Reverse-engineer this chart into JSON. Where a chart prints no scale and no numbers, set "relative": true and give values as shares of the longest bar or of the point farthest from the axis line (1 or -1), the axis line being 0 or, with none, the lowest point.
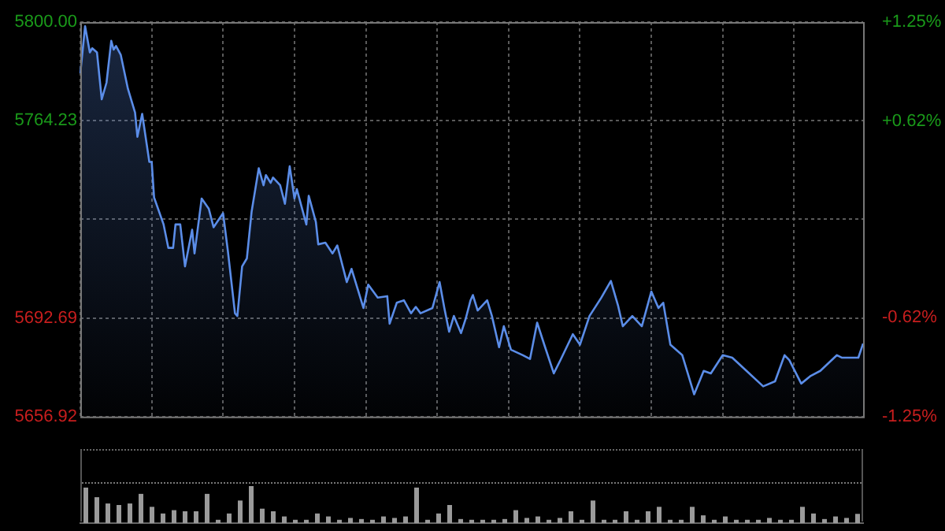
{
  "chart_data": [
    {
      "type": "area",
      "color": "#5b8de8",
      "grid": true,
      "tick_labels": "y",
      "ylim": [
        5656.92,
        5800
      ],
      "yticks": [
        {
          "value": 5656.92,
          "label": "5656.92"
        },
        {
          "value": 5692.69,
          "label": "5692.69"
        },
        {
          "value": 5728.46,
          "label": null
        },
        {
          "value": 5764.23,
          "label": "5764.23"
        },
        {
          "value": 5800,
          "label": "5800.00"
        }
      ],
      "y2lim": [
        -1.25,
        1.25
      ],
      "y2ticks": [
        {
          "value": -1.25,
          "label": "-1.25%"
        },
        {
          "value": -0.62,
          "label": "-0.62%"
        },
        {
          "value": 0,
          "label": null
        },
        {
          "value": 0.62,
          "label": "+0.62%"
        },
        {
          "value": 1.25,
          "label": "+1.25%"
        }
      ],
      "categories": [
        null,
        null,
        null,
        null,
        null,
        null,
        null,
        null,
        null,
        null,
        null,
        null,
        null,
        null,
        null,
        null,
        null,
        null,
        null,
        null,
        null,
        null,
        null,
        null,
        null,
        null,
        null,
        null,
        null,
        null,
        null,
        null,
        null,
        null,
        null,
        null,
        null,
        null,
        null,
        null,
        null,
        null,
        null,
        null,
        null,
        null,
        null,
        null,
        null,
        null,
        null,
        null,
        null,
        null,
        null,
        null,
        null,
        null,
        null,
        null,
        null,
        null,
        null,
        null,
        null,
        null,
        null,
        null,
        null,
        null,
        null,
        null,
        null,
        null,
        null,
        null,
        null,
        null,
        null,
        null,
        null,
        null,
        null,
        null,
        null,
        null,
        null,
        null,
        null,
        null,
        null,
        null,
        null,
        null,
        null,
        null,
        null,
        null,
        null,
        null,
        null,
        null,
        null,
        null,
        null,
        null,
        null,
        null,
        null,
        null,
        null,
        null,
        null,
        null,
        null,
        null,
        null,
        null,
        null,
        null,
        null,
        null,
        null,
        null,
        null,
        null,
        null,
        null,
        null,
        null,
        null,
        null,
        null,
        null,
        null,
        null,
        null,
        null,
        null,
        null,
        null,
        null,
        null,
        null,
        null,
        null,
        null,
        null,
        null,
        null,
        null,
        null,
        null,
        null,
        null,
        null,
        null,
        null,
        null,
        null,
        null,
        null,
        null,
        null,
        null,
        null,
        null,
        null,
        null,
        null,
        null,
        null,
        null,
        null,
        null,
        null,
        null,
        null,
        null,
        null,
        null,
        null,
        null,
        null,
        null,
        null,
        null,
        null,
        null,
        null,
        null,
        null,
        null,
        null,
        null,
        null,
        null,
        null,
        null,
        null,
        null,
        null,
        null,
        null,
        null,
        null,
        null,
        null,
        null,
        null,
        null,
        null,
        null,
        null,
        null,
        null,
        null,
        null,
        null,
        null,
        null,
        null,
        null,
        null,
        null,
        null,
        null,
        null,
        null,
        null,
        null,
        null,
        null,
        null,
        null,
        null,
        null,
        null,
        null,
        null,
        null,
        null,
        null,
        null,
        null,
        null,
        null,
        null,
        null,
        null,
        null,
        null,
        null,
        null,
        null,
        null,
        null,
        null,
        null,
        null,
        null,
        null,
        null,
        null,
        null,
        null,
        null,
        null,
        null,
        null,
        null,
        null,
        null,
        null,
        null,
        null,
        null,
        null,
        null,
        null,
        null,
        null,
        null,
        null,
        null,
        null,
        null,
        null,
        null,
        null,
        null,
        null,
        null,
        null,
        null,
        null,
        null,
        null,
        null,
        null,
        null,
        null,
        null,
        null,
        null,
        null,
        null,
        null,
        null,
        null,
        null,
        null,
        null,
        null,
        null,
        null,
        null,
        null,
        null,
        null,
        null,
        null,
        null,
        null,
        null,
        null,
        null,
        null,
        null,
        null
      ],
      "values": [
        5781.4,
        null,
        5798.5,
        null,
        5789.0,
        5790.5,
        null,
        5789.0,
        null,
        5772.0,
        null,
        5778.0,
        null,
        5793.2,
        5790.0,
        5791.3,
        null,
        5788.1,
        null,
        null,
        5775.8,
        null,
        null,
        5767.2,
        5758.4,
        null,
        5766.7,
        null,
        null,
        5749.3,
        5749.3,
        5736.4,
        null,
        null,
        null,
        5726.6,
        null,
        5718.1,
        null,
        5718.1,
        5726.6,
        null,
        5726.6,
        null,
        5711.4,
        null,
        null,
        5724.7,
        5716.1,
        null,
        null,
        5736.0,
        null,
        null,
        5732.3,
        null,
        5725.6,
        null,
        null,
        null,
        5730.7,
        null,
        5717.1,
        null,
        null,
        5694.4,
        5693.4,
        null,
        5711.4,
        null,
        5714.3,
        null,
        5731.3,
        null,
        null,
        5747.0,
        null,
        5740.8,
        5744.5,
        null,
        5741.7,
        5743.6,
        null,
        null,
        5740.8,
        null,
        5734.1,
        null,
        5747.7,
        null,
        5736.0,
        5739.4,
        null,
        null,
        null,
        5726.6,
        5737.0,
        null,
        null,
        5727.5,
        5719.4,
        null,
        null,
        5720.0,
        null,
        null,
        5716.1,
        null,
        5719.0,
        null,
        null,
        null,
        5705.7,
        null,
        5710.5,
        null,
        null,
        null,
        null,
        5696.3,
        null,
        5704.8,
        null,
        null,
        null,
        5700.1,
        null,
        null,
        null,
        5700.6,
        5690.6,
        null,
        null,
        5698.2,
        null,
        null,
        5699.1,
        null,
        null,
        5694.4,
        null,
        5696.7,
        null,
        5694.4,
        null,
        null,
        null,
        null,
        5696.3,
        null,
        null,
        5705.7,
        null,
        5696.3,
        null,
        5687.7,
        null,
        5693.4,
        null,
        null,
        5687.2,
        null,
        5692.5,
        null,
        5699.1,
        5701.0,
        null,
        5695.4,
        null,
        null,
        null,
        5699.1,
        null,
        5693.4,
        null,
        null,
        5682.1,
        null,
        5689.7,
        null,
        null,
        5681.2,
        null,
        null,
        null,
        null,
        5679.2,
        null,
        null,
        5677.8,
        null,
        null,
        5691.0,
        null,
        null,
        5683.0,
        null,
        null,
        null,
        5672.6,
        null,
        null,
        5677.8,
        null,
        null,
        null,
        null,
        5686.8,
        null,
        null,
        5683.0,
        null,
        null,
        null,
        5693.4,
        null,
        null,
        null,
        null,
        5700.1,
        null,
        null,
        null,
        5706.1,
        null,
        null,
        5697.2,
        null,
        5689.7,
        null,
        null,
        null,
        5693.4,
        null,
        null,
        null,
        5689.7,
        null,
        null,
        null,
        5702.3,
        null,
        null,
        5696.3,
        null,
        5698.2,
        null,
        null,
        5683.0,
        null,
        null,
        null,
        null,
        5679.2,
        null,
        null,
        null,
        null,
        5665.0,
        null,
        null,
        null,
        5673.5,
        null,
        null,
        5672.6,
        null,
        null,
        null,
        null,
        5679.2,
        null,
        null,
        null,
        5678.3,
        null,
        null,
        null,
        null,
        null,
        5673.5,
        null,
        null,
        null,
        null,
        null,
        null,
        5667.9,
        null,
        null,
        null,
        null,
        5669.7,
        null,
        null,
        null,
        5679.2,
        null,
        5677.4,
        null,
        null,
        null,
        null,
        5668.9,
        null,
        null,
        null,
        5671.7,
        null,
        null,
        null,
        5673.5,
        null,
        null,
        null,
        null,
        null,
        null,
        5679.2,
        null,
        5678.3,
        null,
        null,
        null,
        null,
        null,
        null,
        5678.3,
        null,
        5683.4
      ]
    },
    {
      "type": "bar",
      "relative": true,
      "color": "#9a9a9a",
      "categories": [
        null,
        null,
        null,
        null,
        null,
        null,
        null,
        null,
        null,
        null,
        null,
        null,
        null,
        null,
        null,
        null,
        null,
        null,
        null,
        null,
        null,
        null,
        null,
        null,
        null,
        null,
        null,
        null,
        null,
        null,
        null,
        null,
        null,
        null,
        null,
        null,
        null,
        null,
        null,
        null,
        null,
        null,
        null,
        null,
        null,
        null,
        null,
        null,
        null,
        null,
        null,
        null,
        null,
        null,
        null,
        null,
        null,
        null,
        null,
        null,
        null,
        null,
        null,
        null,
        null,
        null,
        null,
        null,
        null,
        null,
        null
      ],
      "values": [
        0.96,
        0.7,
        0.53,
        0.49,
        0.53,
        0.79,
        0.44,
        0.26,
        0.35,
        0.32,
        0.32,
        0.79,
        0.09,
        0.26,
        0.61,
        1,
        0.39,
        0.32,
        0.18,
        0.09,
        0.09,
        0.26,
        0.18,
        0.09,
        0.14,
        0.11,
        0.09,
        0.18,
        0.14,
        0.18,
        0.96,
        0.09,
        0.26,
        0.49,
        0.11,
        0.09,
        0.09,
        0.09,
        0.11,
        0.35,
        0.14,
        0.18,
        0.09,
        0.14,
        0.32,
        0.09,
        0.61,
        0.09,
        0.09,
        0.32,
        0.09,
        0.32,
        0.44,
        0.09,
        0.09,
        0.44,
        0.21,
        0.09,
        0.18,
        0.09,
        0.09,
        0.09,
        0.14,
        0.09,
        0.09,
        0.44,
        0.26,
        0.11,
        0.18,
        0.14,
        0.25
      ]
    }
  ]
}
